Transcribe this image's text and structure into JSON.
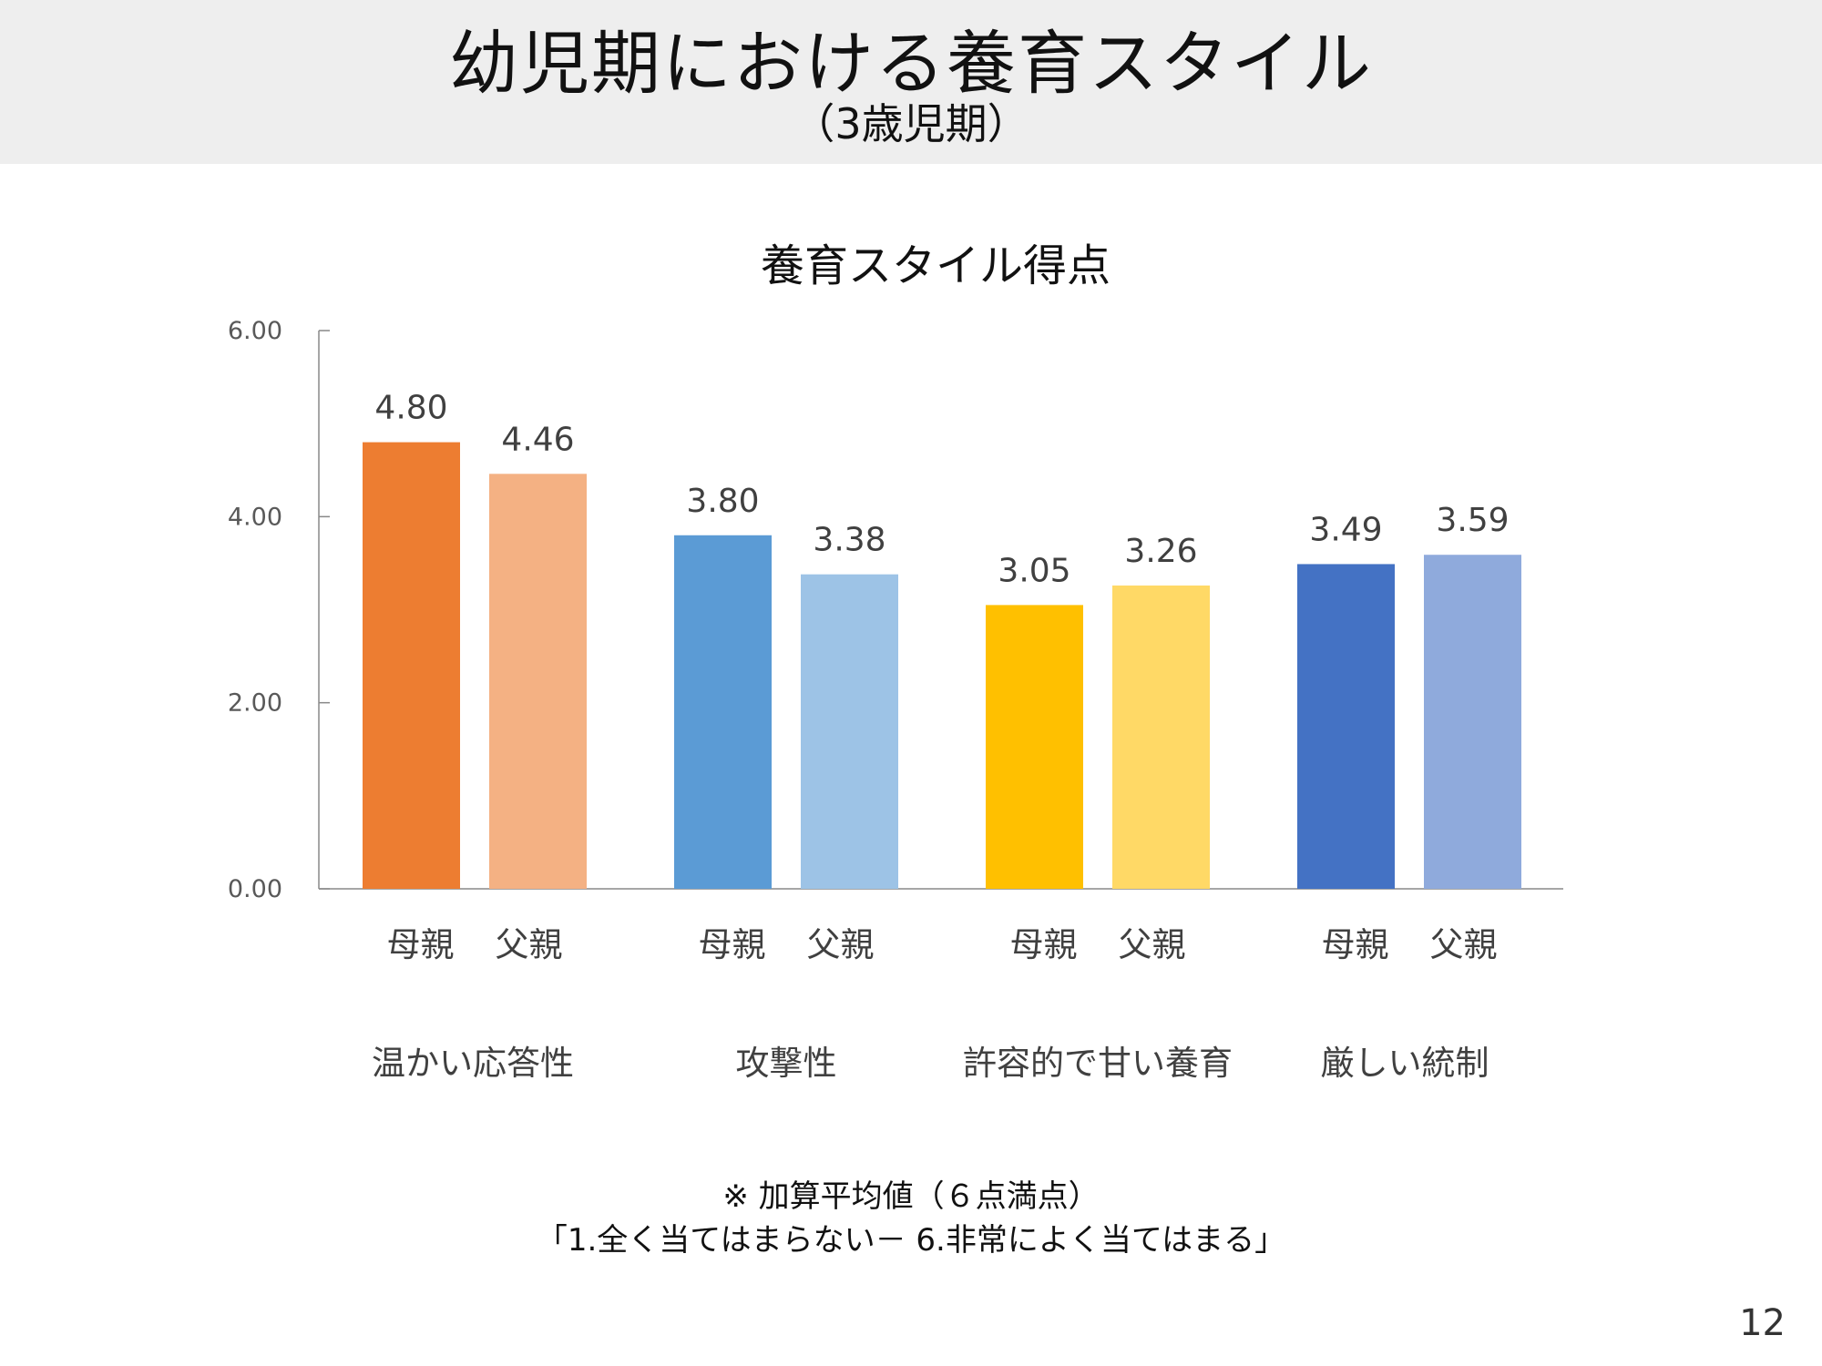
{
  "header": {
    "title": "幼児期における養育スタイル",
    "subtitle": "（3歳児期）"
  },
  "chart_data": {
    "type": "bar",
    "title": "養育スタイル得点",
    "categories": [
      "温かい応答性",
      "攻撃性",
      "許容的で甘い養育",
      "厳しい統制"
    ],
    "series_labels": [
      "母親",
      "父親"
    ],
    "series": [
      {
        "name": "母親",
        "values": [
          4.8,
          3.8,
          3.05,
          3.49
        ],
        "value_labels": [
          "4.80",
          "3.80",
          "3.05",
          "3.49"
        ]
      },
      {
        "name": "父親",
        "values": [
          4.46,
          3.38,
          3.26,
          3.59
        ],
        "value_labels": [
          "4.46",
          "3.38",
          "3.26",
          "3.59"
        ]
      }
    ],
    "colors": [
      [
        "#ED7D31",
        "#F4B183"
      ],
      [
        "#5B9BD5",
        "#9DC3E6"
      ],
      [
        "#FFC000",
        "#FFD966"
      ],
      [
        "#4472C4",
        "#8FAADC"
      ]
    ],
    "ylim": [
      0,
      6
    ],
    "yticks": [
      "0.00",
      "2.00",
      "4.00",
      "6.00"
    ],
    "ytick_values": [
      0,
      2,
      4,
      6
    ],
    "xlabel": "",
    "ylabel": "",
    "grid": false,
    "legend": "none"
  },
  "notes": {
    "line1": "※ 加算平均値（６点満点）",
    "line2": "「1.全く当てはまらない－ 6.非常によく当てはまる」"
  },
  "page_number": "12"
}
